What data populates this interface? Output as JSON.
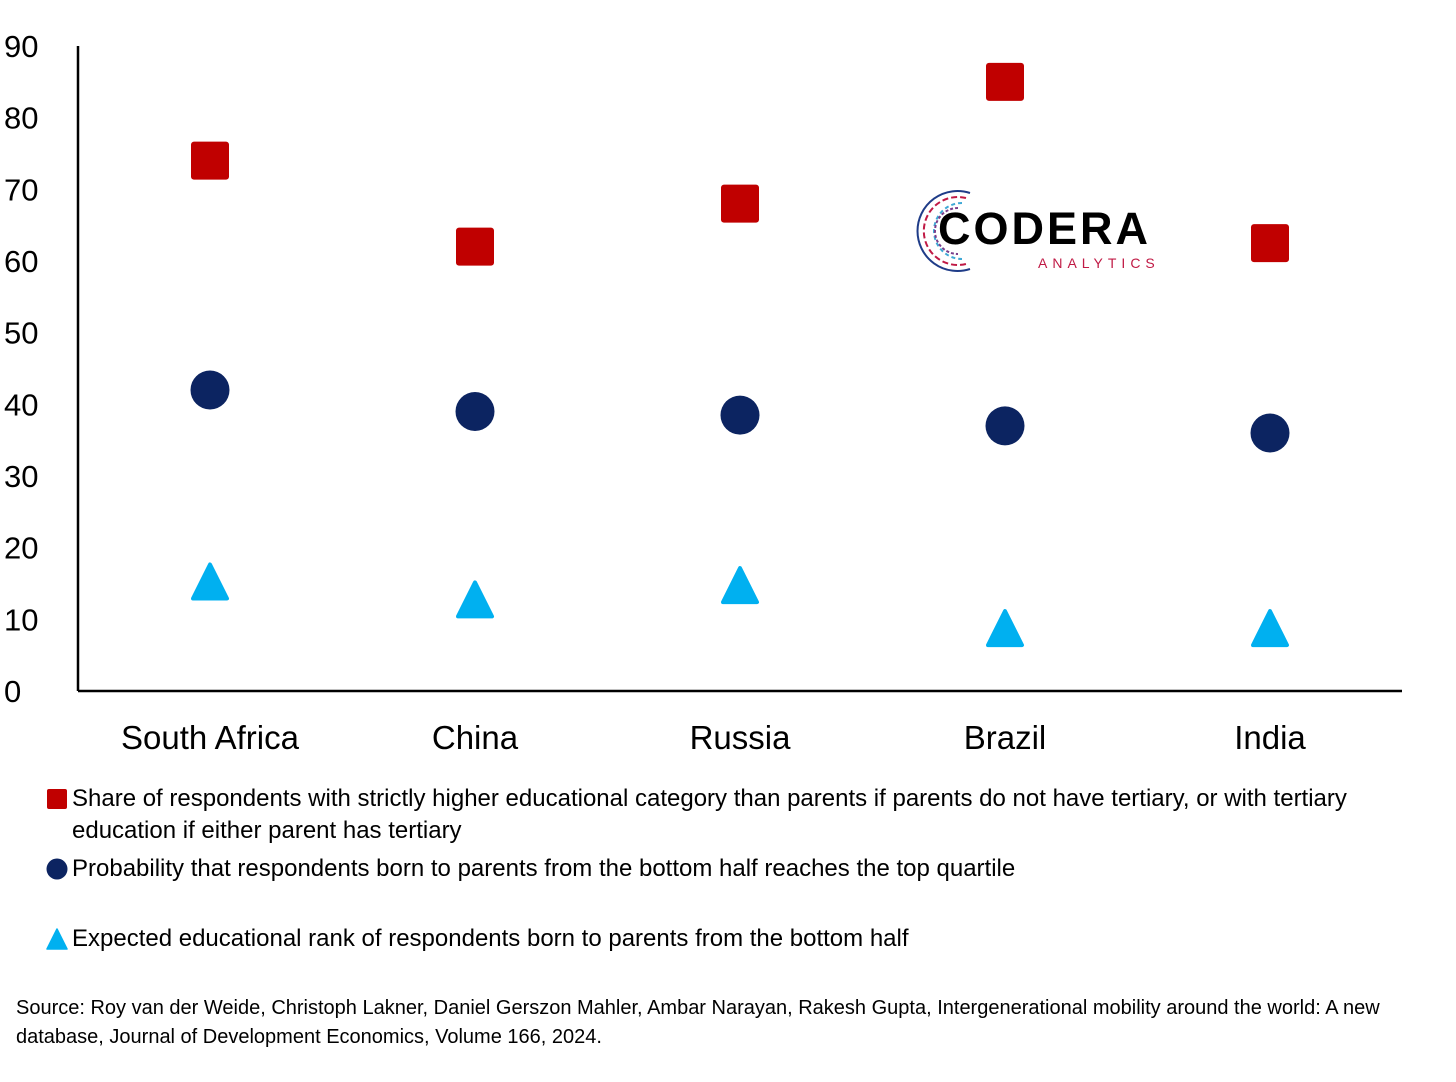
{
  "chart_data": {
    "type": "scatter",
    "categories": [
      "South Africa",
      "China",
      "Russia",
      "Brazil",
      "India"
    ],
    "ylim": [
      0,
      90
    ],
    "yticks": [
      "0",
      "10",
      "20",
      "30",
      "40",
      "50",
      "60",
      "70",
      "80",
      "90"
    ],
    "grid": false,
    "legend_position": "bottom",
    "series": [
      {
        "name": "Share of respondents with strictly higher educational category than parents if parents do not have tertiary, or with tertiary education if either parent has tertiary",
        "marker": "square",
        "color": "#c00000",
        "values": [
          74,
          62,
          68,
          85,
          62.5
        ]
      },
      {
        "name": "Probability that respondents born to parents from the bottom half reaches the top quartile",
        "marker": "circle",
        "color": "#0c2461",
        "values": [
          42,
          39,
          38.5,
          37,
          36
        ]
      },
      {
        "name": "Expected educational rank of respondents born to parents from the bottom half",
        "marker": "triangle",
        "color": "#00b0f0",
        "values": [
          15,
          12.5,
          14.5,
          8.5,
          8.5
        ]
      }
    ]
  },
  "logo": {
    "name": "CODERA",
    "subtitle": "ANALYTICS"
  },
  "source": "Source: Roy van der Weide, Christoph Lakner, Daniel Gerszon Mahler, Ambar Narayan, Rakesh Gupta, Intergenerational mobility around the world: A new database, Journal of Development Economics, Volume 166, 2024."
}
